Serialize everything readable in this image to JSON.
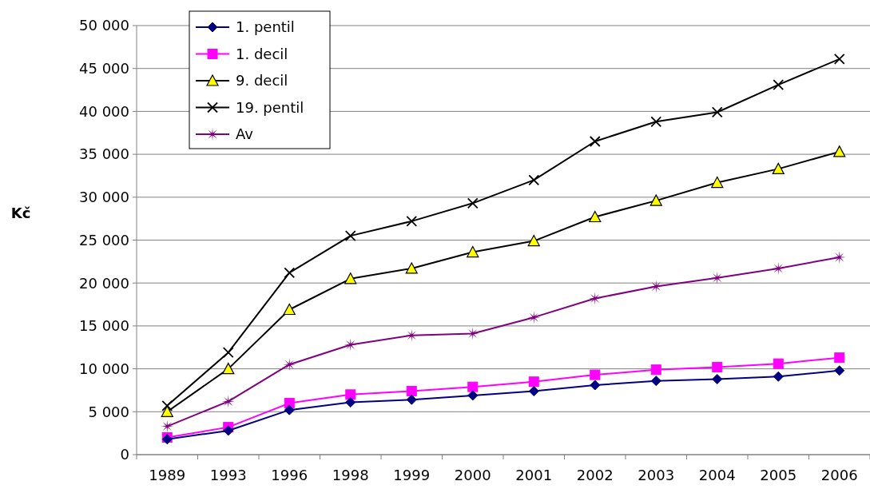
{
  "chart_data": {
    "type": "line",
    "ylabel": "Kč",
    "categories": [
      "1989",
      "1993",
      "1996",
      "1998",
      "1999",
      "2000",
      "2001",
      "2002",
      "2003",
      "2004",
      "2005",
      "2006"
    ],
    "ylim": [
      0,
      50000
    ],
    "yticks": [
      {
        "value": 0,
        "label": "0"
      },
      {
        "value": 5000,
        "label": "5 000"
      },
      {
        "value": 10000,
        "label": "10 000"
      },
      {
        "value": 15000,
        "label": "15 000"
      },
      {
        "value": 20000,
        "label": "20 000"
      },
      {
        "value": 25000,
        "label": "25 000"
      },
      {
        "value": 30000,
        "label": "30 000"
      },
      {
        "value": 35000,
        "label": "35 000"
      },
      {
        "value": 40000,
        "label": "40 000"
      },
      {
        "value": 45000,
        "label": "45 000"
      },
      {
        "value": 50000,
        "label": "50 000"
      }
    ],
    "grid": "y",
    "legend": "top left",
    "line_style": "solid",
    "series": [
      {
        "name": "1. pentil",
        "color": "#000080",
        "marker": "diamond",
        "values": [
          1800,
          2800,
          5200,
          6100,
          6400,
          6900,
          7400,
          8100,
          8600,
          8800,
          9100,
          9800
        ]
      },
      {
        "name": "1. decil",
        "color": "#ff00ff",
        "marker": "square",
        "values": [
          2000,
          3200,
          6000,
          7000,
          7400,
          7900,
          8500,
          9300,
          9900,
          10200,
          10600,
          11300
        ]
      },
      {
        "name": "9. decil",
        "color": "#000000",
        "marker": "triangle",
        "values": [
          5000,
          10000,
          16900,
          20500,
          21700,
          23600,
          24900,
          27700,
          29600,
          31700,
          33300,
          35300
        ]
      },
      {
        "name": "19. pentil",
        "color": "#000000",
        "marker": "cross",
        "values": [
          5700,
          11900,
          21200,
          25500,
          27200,
          29300,
          32000,
          36500,
          38800,
          39900,
          43100,
          46100
        ]
      },
      {
        "name": "Av",
        "color": "#800080",
        "marker": "star",
        "values": [
          3300,
          6200,
          10500,
          12800,
          13900,
          14100,
          16000,
          18200,
          19600,
          20600,
          21700,
          23000
        ]
      }
    ]
  }
}
